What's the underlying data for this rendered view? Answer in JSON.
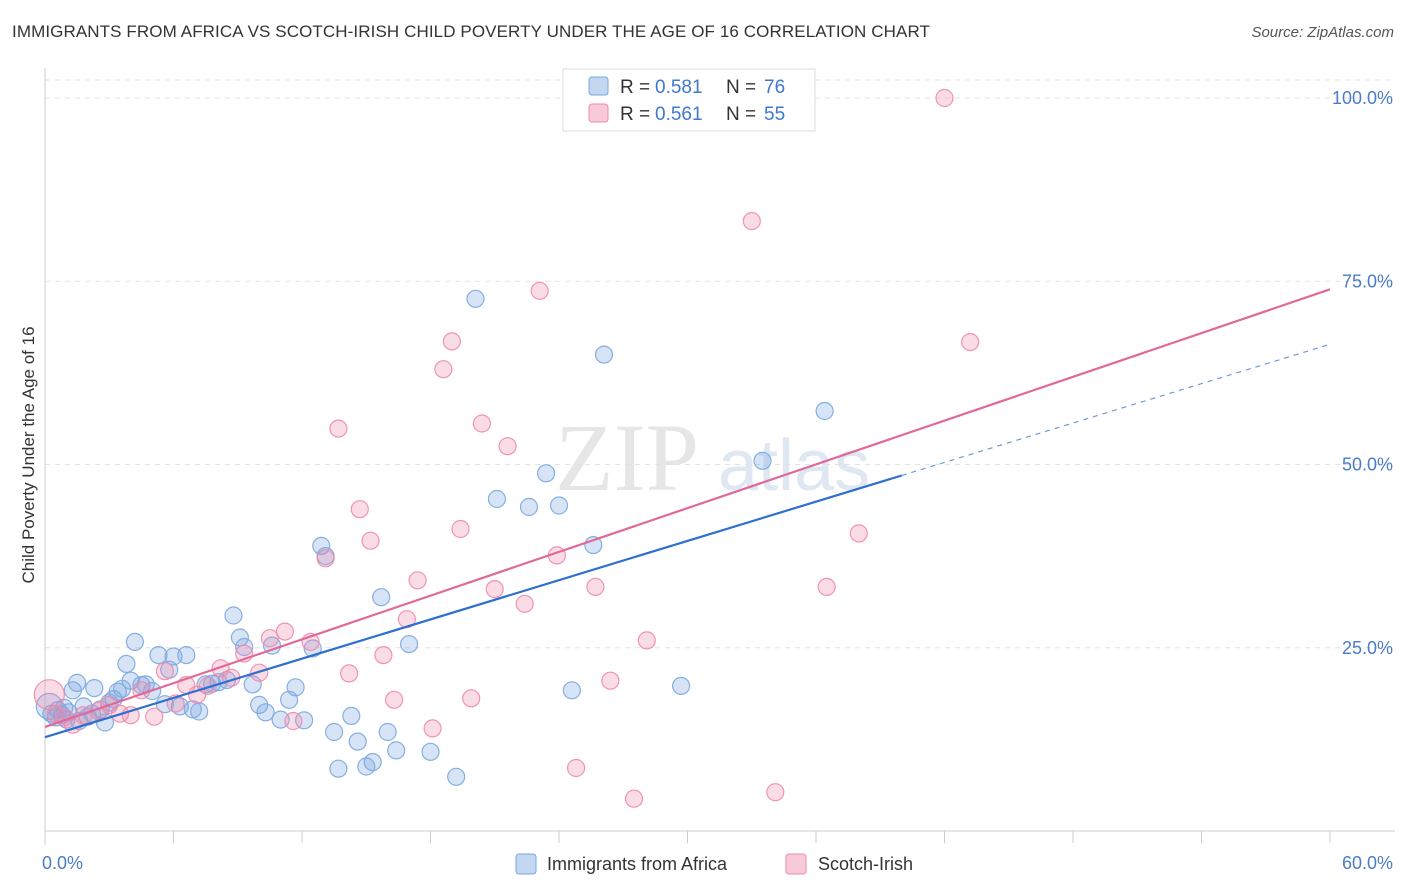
{
  "title": "IMMIGRANTS FROM AFRICA VS SCOTCH-IRISH CHILD POVERTY UNDER THE AGE OF 16 CORRELATION CHART",
  "source": "Source: ZipAtlas.com",
  "watermark": {
    "zip": "ZIP",
    "atlas": "atlas"
  },
  "legend": {
    "r_label": "R =",
    "n_label": "N =",
    "rows": [
      {
        "r": "0.581",
        "n": "76",
        "color": "#7aa7e0"
      },
      {
        "r": "0.561",
        "n": "55",
        "color": "#f08aab"
      }
    ]
  },
  "chart_data": {
    "type": "scatter",
    "xlabel": "",
    "ylabel": "Child Poverty Under the Age of 16",
    "xlim": [
      0,
      60
    ],
    "ylim": [
      0,
      100
    ],
    "x_tick_labels": [
      "0.0%",
      "60.0%"
    ],
    "y_ticks": [
      25,
      50,
      75,
      100
    ],
    "y_tick_labels": [
      "25.0%",
      "50.0%",
      "75.0%",
      "100.0%"
    ],
    "grid": true,
    "legend_position": "top-center",
    "series": [
      {
        "name": "Immigrants from Africa",
        "color": "#7aa7e0",
        "line_color": "#2f6fcf",
        "trend": {
          "x0": 0,
          "y0": 12.8,
          "x1": 40,
          "y1": 48.5,
          "dash_to_x": 60,
          "dash_to_y": 66.4
        },
        "points": [
          [
            0.2,
            17.0
          ],
          [
            0.3,
            16.0
          ],
          [
            0.5,
            15.5
          ],
          [
            0.6,
            16.5
          ],
          [
            0.8,
            15.8
          ],
          [
            0.9,
            16.8
          ],
          [
            1.0,
            15.2
          ],
          [
            1.1,
            16.2
          ],
          [
            1.3,
            19.2
          ],
          [
            1.5,
            20.2
          ],
          [
            1.6,
            15.0
          ],
          [
            1.8,
            17.0
          ],
          [
            2.0,
            15.6
          ],
          [
            2.2,
            16.0
          ],
          [
            2.3,
            19.5
          ],
          [
            2.6,
            16.6
          ],
          [
            2.8,
            14.8
          ],
          [
            3.0,
            17.5
          ],
          [
            3.2,
            18.0
          ],
          [
            3.4,
            19.0
          ],
          [
            3.6,
            19.4
          ],
          [
            3.8,
            22.8
          ],
          [
            4.0,
            20.5
          ],
          [
            4.2,
            25.8
          ],
          [
            4.5,
            19.9
          ],
          [
            4.7,
            20.0
          ],
          [
            5.0,
            19.1
          ],
          [
            5.3,
            24.0
          ],
          [
            5.6,
            17.3
          ],
          [
            5.8,
            22.0
          ],
          [
            6.0,
            23.8
          ],
          [
            6.3,
            17.0
          ],
          [
            6.6,
            24.0
          ],
          [
            6.9,
            16.6
          ],
          [
            7.2,
            16.3
          ],
          [
            7.5,
            20.0
          ],
          [
            7.8,
            20.1
          ],
          [
            8.1,
            20.3
          ],
          [
            8.5,
            20.6
          ],
          [
            8.8,
            29.4
          ],
          [
            9.1,
            26.4
          ],
          [
            9.3,
            25.1
          ],
          [
            9.7,
            20.0
          ],
          [
            10.0,
            17.2
          ],
          [
            10.3,
            16.2
          ],
          [
            10.6,
            25.3
          ],
          [
            11.0,
            15.2
          ],
          [
            11.4,
            17.9
          ],
          [
            11.7,
            19.6
          ],
          [
            12.1,
            15.1
          ],
          [
            12.5,
            24.9
          ],
          [
            12.9,
            38.9
          ],
          [
            13.1,
            37.5
          ],
          [
            13.5,
            13.5
          ],
          [
            13.7,
            8.5
          ],
          [
            14.3,
            15.7
          ],
          [
            14.6,
            12.2
          ],
          [
            15.0,
            8.8
          ],
          [
            15.3,
            9.4
          ],
          [
            15.7,
            31.9
          ],
          [
            16.0,
            13.5
          ],
          [
            16.4,
            11.0
          ],
          [
            17.0,
            25.5
          ],
          [
            18.0,
            10.8
          ],
          [
            19.2,
            7.4
          ],
          [
            20.1,
            72.6
          ],
          [
            21.1,
            45.3
          ],
          [
            22.6,
            44.2
          ],
          [
            23.4,
            48.8
          ],
          [
            24.0,
            44.4
          ],
          [
            24.6,
            19.2
          ],
          [
            25.6,
            39.0
          ],
          [
            26.1,
            65.0
          ],
          [
            29.7,
            19.8
          ],
          [
            33.5,
            50.5
          ],
          [
            36.4,
            57.3
          ]
        ]
      },
      {
        "name": "Scotch-Irish",
        "color": "#f08aab",
        "line_color": "#e0689a",
        "trend": {
          "x0": 0,
          "y0": 14.2,
          "x1": 60,
          "y1": 73.9
        },
        "points": [
          [
            0.2,
            18.6
          ],
          [
            0.5,
            16.0
          ],
          [
            0.9,
            15.5
          ],
          [
            1.3,
            14.5
          ],
          [
            1.8,
            15.8
          ],
          [
            2.5,
            16.4
          ],
          [
            3.0,
            17.2
          ],
          [
            3.5,
            16.0
          ],
          [
            4.0,
            15.8
          ],
          [
            4.5,
            19.2
          ],
          [
            5.1,
            15.6
          ],
          [
            5.6,
            21.8
          ],
          [
            6.1,
            17.4
          ],
          [
            6.6,
            19.9
          ],
          [
            7.1,
            18.6
          ],
          [
            7.6,
            19.8
          ],
          [
            8.2,
            22.2
          ],
          [
            8.7,
            20.9
          ],
          [
            9.3,
            24.2
          ],
          [
            10.0,
            21.6
          ],
          [
            10.5,
            26.3
          ],
          [
            11.2,
            27.2
          ],
          [
            11.6,
            15.0
          ],
          [
            12.4,
            25.8
          ],
          [
            13.1,
            37.2
          ],
          [
            13.7,
            54.9
          ],
          [
            14.2,
            21.5
          ],
          [
            14.7,
            43.9
          ],
          [
            15.2,
            39.6
          ],
          [
            15.8,
            24.0
          ],
          [
            16.3,
            17.9
          ],
          [
            16.9,
            28.9
          ],
          [
            17.4,
            34.2
          ],
          [
            18.1,
            14.0
          ],
          [
            18.6,
            63.0
          ],
          [
            19.0,
            66.8
          ],
          [
            19.4,
            41.2
          ],
          [
            19.9,
            18.1
          ],
          [
            20.4,
            55.6
          ],
          [
            21.0,
            33.0
          ],
          [
            21.6,
            52.5
          ],
          [
            22.4,
            31.0
          ],
          [
            23.1,
            73.7
          ],
          [
            23.9,
            37.6
          ],
          [
            24.8,
            8.6
          ],
          [
            25.7,
            33.3
          ],
          [
            26.4,
            20.5
          ],
          [
            27.5,
            4.4
          ],
          [
            28.1,
            26.0
          ],
          [
            33.0,
            83.2
          ],
          [
            34.1,
            5.3
          ],
          [
            36.5,
            33.3
          ],
          [
            38.0,
            40.6
          ],
          [
            42.0,
            100.0
          ],
          [
            43.2,
            66.7
          ]
        ]
      }
    ]
  },
  "bottom_legend": [
    {
      "label": "Immigrants from Africa",
      "color": "#7aa7e0"
    },
    {
      "label": "Scotch-Irish",
      "color": "#f08aab"
    }
  ]
}
